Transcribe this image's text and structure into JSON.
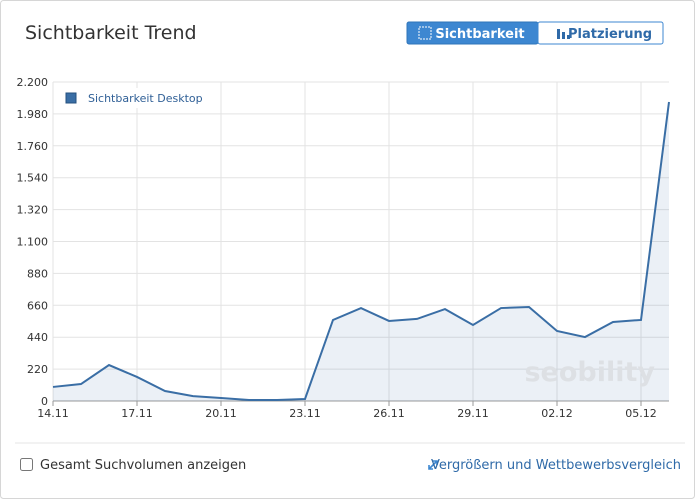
{
  "header": {
    "title": "Sichtbarkeit Trend",
    "tabs": [
      "Sichtbarkeit",
      "Platzierung"
    ],
    "active_tab": 0
  },
  "chart_data": {
    "type": "line",
    "legend": "Sichtbarkeit Desktop",
    "watermark": "seobility",
    "categories": [
      "14.11",
      null,
      null,
      "17.11",
      null,
      null,
      "20.11",
      null,
      null,
      "23.11",
      null,
      null,
      "26.11",
      null,
      null,
      "29.11",
      null,
      null,
      "02.12",
      null,
      null,
      "05.12",
      null
    ],
    "series": [
      {
        "name": "Sichtbarkeit Desktop",
        "color": "#3a6ea5",
        "values": [
          97,
          117,
          248,
          166,
          69,
          34,
          21,
          7,
          7,
          14,
          559,
          641,
          552,
          566,
          634,
          524,
          641,
          648,
          483,
          441,
          545,
          559,
          2062
        ]
      }
    ],
    "ylim": [
      0,
      2200
    ],
    "yticks": [
      0,
      220,
      440,
      660,
      880,
      {
        "value": 1100,
        "label": "1.100"
      },
      {
        "value": 1320,
        "label": "1.320"
      },
      {
        "value": 1540,
        "label": "1.540"
      },
      {
        "value": 1760,
        "label": "1.760"
      },
      {
        "value": 1980,
        "label": "1.980"
      },
      {
        "value": 2200,
        "label": "2.200"
      }
    ],
    "grid": true
  },
  "footer": {
    "checkbox": "Gesamt Suchvolumen anzeigen",
    "link": "Vergrößern und Wettbewerbsvergleich"
  }
}
